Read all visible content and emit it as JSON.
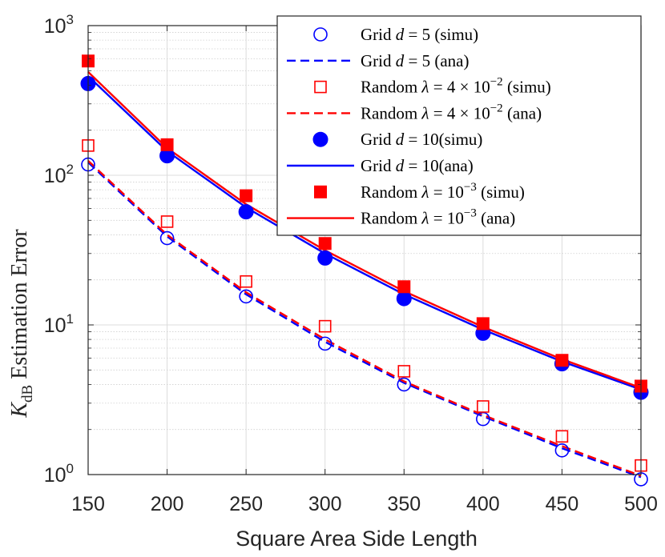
{
  "chart_data": {
    "type": "line",
    "title": "",
    "xlabel": "Square Area Side Length",
    "ylabel": {
      "symbol": "K",
      "subscript": "dB",
      "text": "Estimation Error"
    },
    "yscale": "log",
    "xlim": [
      150,
      500
    ],
    "ylim": [
      1,
      1000
    ],
    "x_ticks": [
      150,
      200,
      250,
      300,
      350,
      400,
      450,
      500
    ],
    "x_tick_labels": [
      "150",
      "200",
      "250",
      "300",
      "350",
      "400",
      "450",
      "500"
    ],
    "y_ticks": [
      {
        "value": 1,
        "base": "10",
        "exp": "0"
      },
      {
        "value": 10,
        "base": "10",
        "exp": "1"
      },
      {
        "value": 100,
        "base": "10",
        "exp": "2"
      },
      {
        "value": 1000,
        "base": "10",
        "exp": "3"
      }
    ],
    "grid": true,
    "legend_position": "top-right",
    "x": [
      150,
      200,
      250,
      300,
      350,
      400,
      450,
      500
    ],
    "series": [
      {
        "name": "Grid d = 5 (simu)",
        "color": "#0000ff",
        "marker": "circle-open",
        "line": "none",
        "values": [
          118,
          38,
          15.5,
          7.5,
          4.0,
          2.35,
          1.45,
          0.93
        ]
      },
      {
        "name": "Grid d = 5 (ana)",
        "color": "#0000ff",
        "marker": "none",
        "line": "dashed",
        "values": [
          122,
          39,
          16,
          7.7,
          4.1,
          2.45,
          1.5,
          0.96
        ]
      },
      {
        "name": "Random λ = 4 × 10^-2 (simu)",
        "color": "#ff0000",
        "marker": "square-open",
        "line": "none",
        "values": [
          158,
          49,
          19.5,
          9.8,
          4.9,
          2.85,
          1.8,
          1.15
        ]
      },
      {
        "name": "Random λ = 4 × 10^-2 (ana)",
        "color": "#ff0000",
        "marker": "none",
        "line": "dashed",
        "values": [
          125,
          40,
          16.5,
          8.0,
          4.2,
          2.5,
          1.55,
          0.98
        ]
      },
      {
        "name": "Grid d = 10(simu)",
        "color": "#0000ff",
        "marker": "circle-filled",
        "line": "none",
        "values": [
          410,
          135,
          57,
          28,
          15,
          8.8,
          5.5,
          3.55
        ]
      },
      {
        "name": "Grid d = 10(ana)",
        "color": "#0000ff",
        "marker": "none",
        "line": "solid",
        "values": [
          460,
          145,
          61,
          30,
          16,
          9.3,
          5.7,
          3.7
        ]
      },
      {
        "name": "Random λ = 10^-3 (simu)",
        "color": "#ff0000",
        "marker": "square-filled",
        "line": "none",
        "values": [
          580,
          160,
          73,
          35,
          18,
          10.2,
          5.8,
          3.9
        ]
      },
      {
        "name": "Random λ = 10^-3 (ana)",
        "color": "#ff0000",
        "marker": "none",
        "line": "solid",
        "values": [
          490,
          152,
          64,
          31.5,
          16.8,
          9.7,
          5.9,
          3.8
        ]
      }
    ]
  },
  "legend": {
    "entries": [
      {
        "pre": "Grid ",
        "var": "d",
        "eq": " = 5 (simu)",
        "exp": "",
        "post": ""
      },
      {
        "pre": "Grid ",
        "var": "d",
        "eq": " = 5 (ana)",
        "exp": "",
        "post": ""
      },
      {
        "pre": "Random ",
        "var": "λ",
        "eq": " = 4 × 10",
        "exp": "−2",
        "post": " (simu)"
      },
      {
        "pre": "Random ",
        "var": "λ",
        "eq": " = 4 × 10",
        "exp": "−2",
        "post": " (ana)"
      },
      {
        "pre": "Grid ",
        "var": "d",
        "eq": " = 10(simu)",
        "exp": "",
        "post": ""
      },
      {
        "pre": "Grid ",
        "var": "d",
        "eq": " = 10(ana)",
        "exp": "",
        "post": ""
      },
      {
        "pre": "Random ",
        "var": "λ",
        "eq": " = 10",
        "exp": "−3",
        "post": " (simu)"
      },
      {
        "pre": "Random ",
        "var": "λ",
        "eq": " = 10",
        "exp": "−3",
        "post": " (ana)"
      }
    ]
  }
}
